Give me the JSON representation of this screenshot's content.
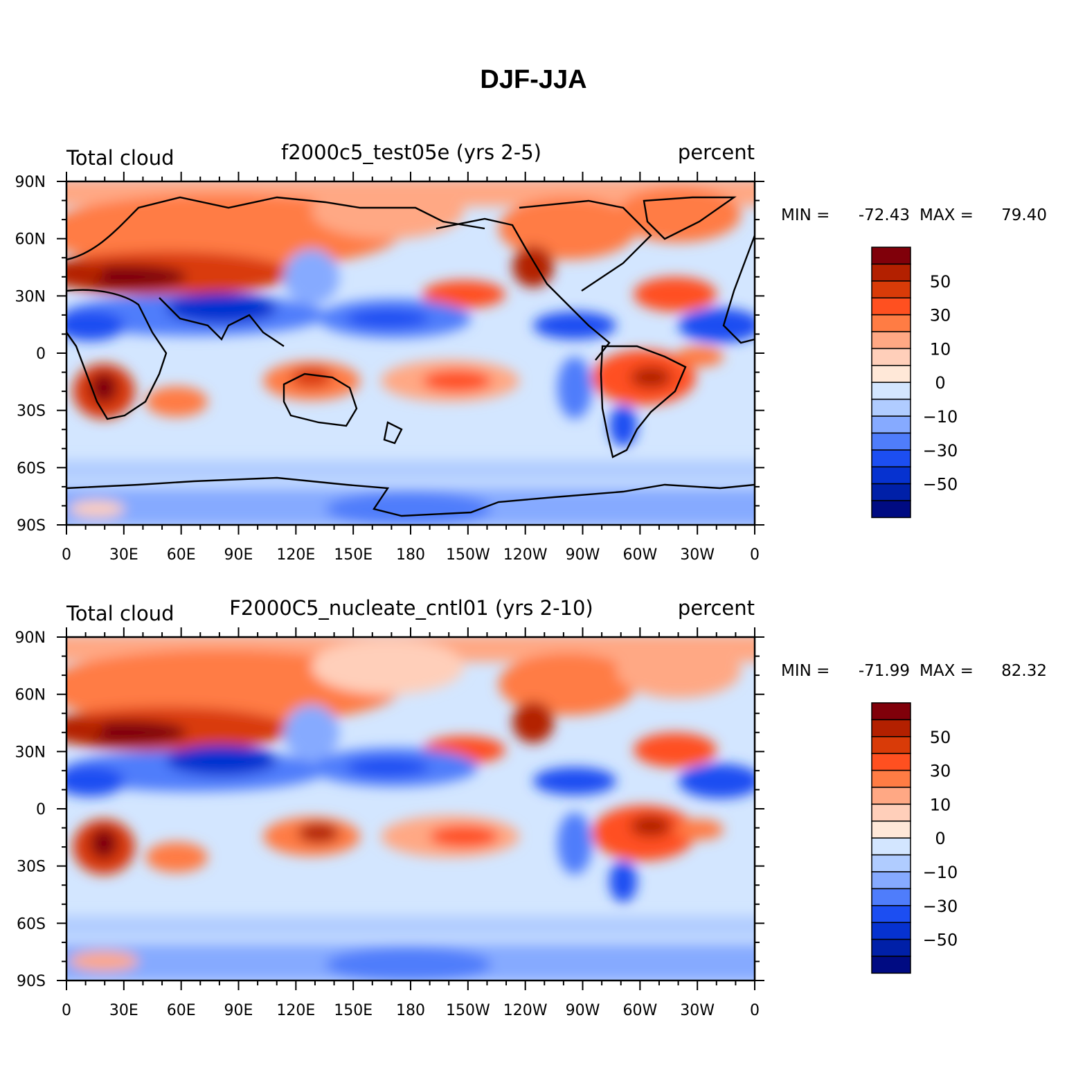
{
  "figure": {
    "title": "DJF-JJA"
  },
  "colors": {
    "levels": [
      "#80000a",
      "#b32000",
      "#d93b08",
      "#ff5020",
      "#ff7c44",
      "#ffa884",
      "#ffcfba",
      "#ffe8d8",
      "#d3e6ff",
      "#b0ccff",
      "#86aaff",
      "#4f7dfb",
      "#1c4ef2",
      "#0632d0",
      "#0020a8",
      "#000b82"
    ],
    "coast": "#000000"
  },
  "axes": {
    "lat_labels": [
      "90N",
      "60N",
      "30N",
      "0",
      "30S",
      "60S",
      "90S"
    ],
    "lon_labels": [
      "0",
      "30E",
      "60E",
      "90E",
      "120E",
      "150E",
      "180",
      "150W",
      "120W",
      "90W",
      "60W",
      "30W",
      "0"
    ]
  },
  "colorbar_labels": [
    "50",
    "30",
    "10",
    "0",
    "-10",
    "-30",
    "-50"
  ],
  "panels": [
    {
      "id": "top",
      "left_title": "Total cloud",
      "center_title": "f2000c5_test05e (yrs 2-5)",
      "right_title": "percent",
      "min_label": "MIN = ",
      "min_value": "-72.43",
      "max_label": "MAX = ",
      "max_value": "79.40"
    },
    {
      "id": "bottom",
      "left_title": "Total cloud",
      "center_title": "F2000C5_nucleate_cntl01 (yrs 2-10)",
      "right_title": "percent",
      "min_label": "MIN = ",
      "min_value": "-71.99",
      "max_label": "MAX = ",
      "max_value": "82.32"
    }
  ]
}
